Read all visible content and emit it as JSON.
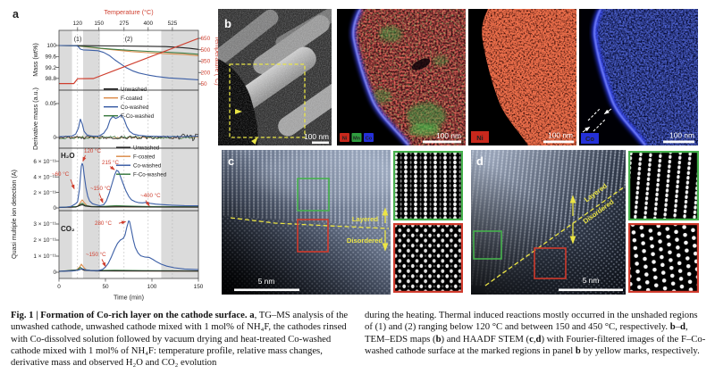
{
  "panel_labels": {
    "a": "a",
    "b": "b",
    "c": "c",
    "d": "d"
  },
  "colors": {
    "red": "#cf3e2e",
    "black": "#222222",
    "orange": "#dd8f4f",
    "blue": "#3c5fa6",
    "green": "#3d7c44",
    "shade": "#dbdbdb",
    "yellow": "#ece545",
    "ni_red": "#c8281c",
    "mn_green": "#2f9e3f",
    "co_blue": "#2430d8"
  },
  "chart_data": {
    "type": "line",
    "x_axis": {
      "label": "Time (min)",
      "ticks": [
        "0",
        "50",
        "100",
        "150"
      ],
      "xlim": [
        0,
        150
      ]
    },
    "top_axis": {
      "label": "Temperature (°C)",
      "ticks": [
        "120",
        "150",
        "275",
        "400",
        "525"
      ],
      "tick_times": [
        20,
        43,
        70,
        96,
        122
      ]
    },
    "right_axis": {
      "label": "Temperature (°C)",
      "ticks": [
        "650",
        "500",
        "350",
        "200",
        "50"
      ],
      "ylim": [
        50,
        650
      ]
    },
    "regions": [
      "(1)",
      "(2)"
    ],
    "unshaded_time_bands": [
      [
        14,
        26
      ],
      [
        44,
        110
      ]
    ],
    "legend": [
      "Unwashed",
      "F-coated",
      "Co-washed",
      "F-Co-washed"
    ],
    "mass": {
      "ylabel": "Mass (wt%)",
      "yticks": [
        "100",
        "99.6",
        "99.2",
        "98.8"
      ]
    },
    "derivative": {
      "ylabel": "Derivative mass (a.u.)",
      "yticks": [
        "0.05",
        "0"
      ]
    },
    "ion": {
      "ylabel": "Quasi multiple ion detection (A)"
    },
    "h2o": {
      "label": "H₂O",
      "yticks": [
        "6 × 10⁻¹¹",
        "4 × 10⁻¹¹",
        "2 × 10⁻¹¹",
        "0"
      ],
      "annotations": [
        "120 °C",
        "215 °C",
        "~60 °C",
        "~150 °C",
        "~400 °C"
      ]
    },
    "co2": {
      "label": "CO₂",
      "yticks": [
        "3 × 10⁻¹¹",
        "2 × 10⁻¹¹",
        "1 × 10⁻¹¹",
        "0"
      ],
      "annotations": [
        "280 °C",
        "~150 °C"
      ]
    },
    "series": {
      "temperature": [
        [
          0,
          55
        ],
        [
          16,
          55
        ],
        [
          20,
          118
        ],
        [
          37,
          120
        ],
        [
          150,
          650
        ]
      ],
      "mass": {
        "unwashed": [
          [
            0,
            100
          ],
          [
            30,
            99.995
          ],
          [
            60,
            99.985
          ],
          [
            90,
            99.975
          ],
          [
            115,
            99.96
          ],
          [
            130,
            99.93
          ],
          [
            140,
            99.9
          ],
          [
            150,
            99.86
          ]
        ],
        "f_coated": [
          [
            0,
            100
          ],
          [
            18,
            99.995
          ],
          [
            25,
            99.97
          ],
          [
            35,
            99.93
          ],
          [
            48,
            99.88
          ],
          [
            62,
            99.83
          ],
          [
            78,
            99.78
          ],
          [
            95,
            99.74
          ],
          [
            115,
            99.7
          ],
          [
            135,
            99.67
          ],
          [
            150,
            99.63
          ]
        ],
        "co_washed": [
          [
            0,
            100
          ],
          [
            19,
            99.995
          ],
          [
            21,
            99.95
          ],
          [
            23,
            99.87
          ],
          [
            26,
            99.84
          ],
          [
            32,
            99.83
          ],
          [
            42,
            99.81
          ],
          [
            48,
            99.75
          ],
          [
            54,
            99.64
          ],
          [
            60,
            99.48
          ],
          [
            66,
            99.34
          ],
          [
            72,
            99.2
          ],
          [
            79,
            99.08
          ],
          [
            86,
            99.0
          ],
          [
            95,
            98.93
          ],
          [
            105,
            98.87
          ],
          [
            118,
            98.82
          ],
          [
            132,
            98.79
          ],
          [
            150,
            98.75
          ]
        ],
        "f_co_washed": [
          [
            0,
            100
          ],
          [
            20,
            99.99
          ],
          [
            32,
            99.95
          ],
          [
            45,
            99.9
          ],
          [
            60,
            99.86
          ],
          [
            78,
            99.82
          ],
          [
            95,
            99.79
          ],
          [
            115,
            99.76
          ],
          [
            135,
            99.72
          ],
          [
            150,
            99.68
          ]
        ]
      },
      "derivative": {
        "co_washed": [
          [
            0,
            0.001
          ],
          [
            14,
            0.002
          ],
          [
            18,
            0.005
          ],
          [
            21,
            0.014
          ],
          [
            23,
            0.027
          ],
          [
            25,
            0.02
          ],
          [
            27,
            0.009
          ],
          [
            30,
            0.004
          ],
          [
            35,
            0.002
          ],
          [
            43,
            0.002
          ],
          [
            48,
            0.006
          ],
          [
            52,
            0.014
          ],
          [
            55,
            0.026
          ],
          [
            58,
            0.031
          ],
          [
            61,
            0.028
          ],
          [
            64,
            0.03
          ],
          [
            67,
            0.033
          ],
          [
            70,
            0.027
          ],
          [
            73,
            0.016
          ],
          [
            76,
            0.009
          ],
          [
            80,
            0.005
          ],
          [
            86,
            0.003
          ],
          [
            95,
            0.002
          ],
          [
            110,
            0.0015
          ],
          [
            130,
            0.001
          ],
          [
            150,
            0.002
          ]
        ]
      },
      "h2o": {
        "co_washed": [
          [
            0,
            0.08
          ],
          [
            8,
            0.1
          ],
          [
            13,
            0.2
          ],
          [
            16,
            0.4
          ],
          [
            18,
            0.55
          ],
          [
            20,
            0.8
          ],
          [
            22,
            2.4
          ],
          [
            24,
            5.4
          ],
          [
            25,
            5.75
          ],
          [
            26,
            5.4
          ],
          [
            27,
            4.3
          ],
          [
            29,
            2.6
          ],
          [
            31,
            1.5
          ],
          [
            33,
            0.9
          ],
          [
            36,
            0.55
          ],
          [
            40,
            0.4
          ],
          [
            44,
            0.3
          ],
          [
            48,
            0.4
          ],
          [
            51,
            0.9
          ],
          [
            54,
            1.9
          ],
          [
            57,
            3.1
          ],
          [
            60,
            4.3
          ],
          [
            62,
            4.85
          ],
          [
            64,
            4.7
          ],
          [
            66,
            4.1
          ],
          [
            69,
            3.1
          ],
          [
            72,
            2.2
          ],
          [
            75,
            1.5
          ],
          [
            78,
            1.05
          ],
          [
            82,
            0.8
          ],
          [
            86,
            0.68
          ],
          [
            90,
            0.66
          ],
          [
            94,
            0.72
          ],
          [
            98,
            0.6
          ],
          [
            104,
            0.5
          ],
          [
            112,
            0.42
          ],
          [
            122,
            0.36
          ],
          [
            135,
            0.3
          ],
          [
            150,
            0.28
          ]
        ],
        "f_coated": [
          [
            0,
            0.06
          ],
          [
            15,
            0.1
          ],
          [
            20,
            0.2
          ],
          [
            23,
            0.7
          ],
          [
            25,
            1.05
          ],
          [
            27,
            0.7
          ],
          [
            30,
            0.3
          ],
          [
            35,
            0.18
          ],
          [
            45,
            0.14
          ],
          [
            60,
            0.15
          ],
          [
            80,
            0.12
          ],
          [
            150,
            0.1
          ]
        ],
        "unwashed": [
          [
            0,
            0.06
          ],
          [
            18,
            0.12
          ],
          [
            22,
            0.3
          ],
          [
            25,
            0.42
          ],
          [
            28,
            0.25
          ],
          [
            35,
            0.15
          ],
          [
            50,
            0.13
          ],
          [
            70,
            0.15
          ],
          [
            100,
            0.12
          ],
          [
            150,
            0.1
          ]
        ],
        "f_co_washed": [
          [
            0,
            0.07
          ],
          [
            20,
            0.2
          ],
          [
            23,
            0.5
          ],
          [
            25,
            0.62
          ],
          [
            28,
            0.35
          ],
          [
            34,
            0.2
          ],
          [
            45,
            0.18
          ],
          [
            55,
            0.25
          ],
          [
            62,
            0.3
          ],
          [
            72,
            0.25
          ],
          [
            90,
            0.2
          ],
          [
            120,
            0.17
          ],
          [
            150,
            0.15
          ]
        ]
      },
      "co2": {
        "co_washed": [
          [
            0,
            0.06
          ],
          [
            15,
            0.08
          ],
          [
            22,
            0.15
          ],
          [
            25,
            0.22
          ],
          [
            28,
            0.15
          ],
          [
            35,
            0.1
          ],
          [
            42,
            0.1
          ],
          [
            47,
            0.18
          ],
          [
            50,
            0.32
          ],
          [
            53,
            0.55
          ],
          [
            56,
            0.9
          ],
          [
            60,
            1.45
          ],
          [
            63,
            1.8
          ],
          [
            66,
            2.0
          ],
          [
            69,
            2.1
          ],
          [
            71,
            2.3
          ],
          [
            73,
            2.8
          ],
          [
            75,
            3.2
          ],
          [
            76,
            3.15
          ],
          [
            78,
            2.6
          ],
          [
            80,
            2.0
          ],
          [
            82,
            1.55
          ],
          [
            85,
            1.2
          ],
          [
            88,
            1.02
          ],
          [
            92,
            0.95
          ],
          [
            97,
            0.92
          ],
          [
            101,
            0.8
          ],
          [
            105,
            0.65
          ],
          [
            110,
            0.5
          ],
          [
            116,
            0.38
          ],
          [
            124,
            0.28
          ],
          [
            135,
            0.2
          ],
          [
            150,
            0.16
          ]
        ],
        "f_coated": [
          [
            0,
            0.05
          ],
          [
            18,
            0.1
          ],
          [
            22,
            0.3
          ],
          [
            24,
            0.5
          ],
          [
            26,
            0.35
          ],
          [
            29,
            0.15
          ],
          [
            35,
            0.1
          ],
          [
            60,
            0.08
          ],
          [
            150,
            0.07
          ]
        ],
        "unwashed": [
          [
            0,
            0.05
          ],
          [
            20,
            0.12
          ],
          [
            24,
            0.2
          ],
          [
            27,
            0.12
          ],
          [
            40,
            0.08
          ],
          [
            150,
            0.07
          ]
        ],
        "f_co_washed": [
          [
            0,
            0.05
          ],
          [
            20,
            0.15
          ],
          [
            23,
            0.3
          ],
          [
            26,
            0.18
          ],
          [
            35,
            0.1
          ],
          [
            60,
            0.12
          ],
          [
            90,
            0.1
          ],
          [
            150,
            0.08
          ]
        ]
      }
    }
  },
  "panel_b": {
    "scale_bar": "100 nm",
    "eds_legend": [
      {
        "el": "Ni",
        "color": "#c8281c"
      },
      {
        "el": "Mn",
        "color": "#2f9e3f"
      },
      {
        "el": "Co",
        "color": "#2430d8"
      }
    ],
    "ni_tag": "Ni",
    "co_tag": "Co"
  },
  "panel_c": {
    "scale_bar": "5 nm",
    "layered": "Layered",
    "disordered": "Disordered"
  },
  "panel_d": {
    "scale_bar": "5 nm",
    "layered": "Layered",
    "disordered": "Disordered"
  },
  "caption": {
    "col1": [
      {
        "t": "Fig. 1 | Formation of Co-rich layer on the cathode surface. ",
        "b": true
      },
      {
        "t": "a",
        "b": true
      },
      {
        "t": ", TG–MS analysis of the unwashed cathode, unwashed cathode mixed with 1 mol% of NH₄F, the cathodes rinsed with Co-dissolved solution followed by vacuum drying and heat-treated Co-washed cathode mixed with 1 mol% of NH₄F: temperature profile, relative mass changes, derivative mass and observed H₂O and CO₂ evolution",
        "b": false
      }
    ],
    "col2": [
      {
        "t": "during the heating. Thermal induced reactions mostly occurred in the unshaded regions of (1) and (2) ranging below 120 °C and between 150 and 450 °C, respectively. ",
        "b": false
      },
      {
        "t": "b",
        "b": true
      },
      {
        "t": "–",
        "b": false
      },
      {
        "t": "d",
        "b": true
      },
      {
        "t": ", TEM–EDS maps (",
        "b": false
      },
      {
        "t": "b",
        "b": true
      },
      {
        "t": ") and HAADF STEM (",
        "b": false
      },
      {
        "t": "c",
        "b": true
      },
      {
        "t": ",",
        "b": false
      },
      {
        "t": "d",
        "b": true
      },
      {
        "t": ") with Fourier-filtered images of the F–Co-washed cathode surface at the marked regions in panel ",
        "b": false
      },
      {
        "t": "b",
        "b": true
      },
      {
        "t": " by yellow marks, respectively.",
        "b": false
      }
    ]
  }
}
